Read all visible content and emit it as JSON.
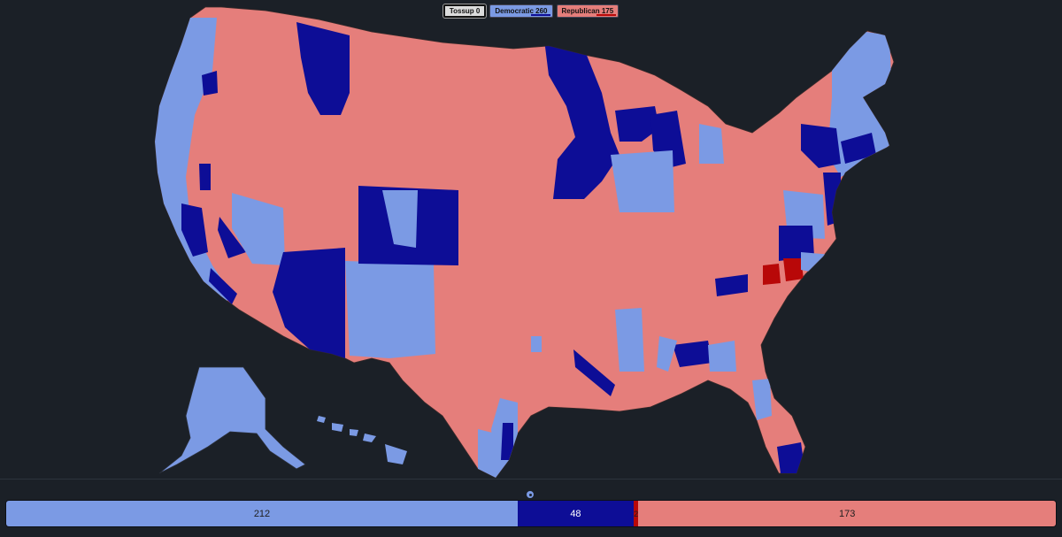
{
  "legend": {
    "tossup": "Tossup 0",
    "democratic": "Democratic 260",
    "republican": "Republican 175"
  },
  "colors": {
    "background": "#1b2027",
    "lean_democratic": "#7b9ae4",
    "safe_democratic": "#0d0d96",
    "lean_republican": "#e57e7b",
    "safe_republican": "#b80808",
    "tossup": "#dcdcdc"
  },
  "seat_bar": {
    "lean_democratic": "212",
    "safe_democratic": "48",
    "safe_republican": "2",
    "lean_republican": "173"
  },
  "map_regions": [
    "us-map-conus",
    "alaska",
    "hawaii"
  ]
}
